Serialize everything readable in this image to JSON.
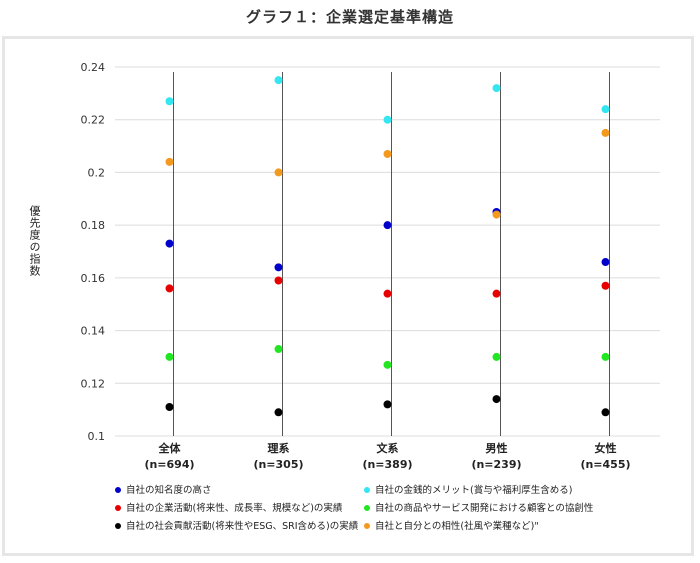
{
  "page": {
    "title": "グラフ１：企業選定基準構造"
  },
  "chart_data": {
    "type": "scatter",
    "title": "グラフ１：企業選定基準構造",
    "ylabel": "優先度の指数",
    "ylim": [
      0.1,
      0.24
    ],
    "yticks": [
      "0.24",
      "0.22",
      "0.2",
      "0.18",
      "0.16",
      "0.14",
      "0.12",
      "0.1"
    ],
    "categories": [
      {
        "name": "全体",
        "n": "(n=694)"
      },
      {
        "name": "理系",
        "n": "(n=305)"
      },
      {
        "name": "文系",
        "n": "(n=389)"
      },
      {
        "name": "男性",
        "n": "(n=239)"
      },
      {
        "name": "女性",
        "n": "(n=455)"
      }
    ],
    "series": [
      {
        "name": "自社の知名度の高さ",
        "color": "#0000cc",
        "values": [
          0.173,
          0.164,
          0.18,
          0.185,
          0.166
        ]
      },
      {
        "name": "自社の金銭的メリット(賞与や福利厚生含める)",
        "color": "#33e6f2",
        "values": [
          0.227,
          0.235,
          0.22,
          0.232,
          0.224
        ]
      },
      {
        "name": "自社の企業活動(将来性、成長率、規模など)の実績",
        "color": "#e60000",
        "values": [
          0.156,
          0.159,
          0.154,
          0.154,
          0.157
        ]
      },
      {
        "name": "自社の商品やサービス開発における顧客との協創性",
        "color": "#22e622",
        "values": [
          0.13,
          0.133,
          0.127,
          0.13,
          0.13
        ]
      },
      {
        "name": "自社の社会貢献活動(将来性やESG、SRI含める)の実績",
        "color": "#000000",
        "values": [
          0.111,
          0.109,
          0.112,
          0.114,
          0.109
        ]
      },
      {
        "name": "自社と自分との相性(社風や業種など)\"",
        "color": "#f39a1e",
        "values": [
          0.204,
          0.2,
          0.207,
          0.184,
          0.215
        ]
      }
    ],
    "grid": true,
    "legend_position": "bottom"
  }
}
